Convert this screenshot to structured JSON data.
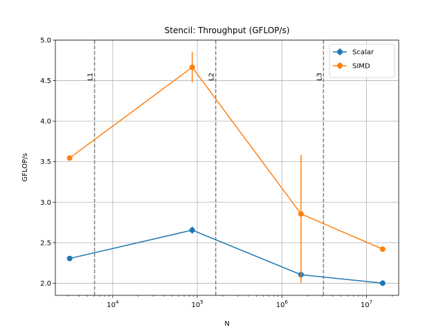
{
  "chart_data": {
    "type": "line",
    "title": "Stencil: Throughput (GFLOP/s)",
    "xlabel": "N",
    "ylabel": "GFLOP/s",
    "xscale": "log",
    "xlim": [
      2100,
      24000000
    ],
    "ylim": [
      1.85,
      5.0
    ],
    "yticks": [
      2.0,
      2.5,
      3.0,
      3.5,
      4.0,
      4.5,
      5.0
    ],
    "ytick_labels": [
      "2.0",
      "2.5",
      "3.0",
      "3.5",
      "4.0",
      "4.5",
      "5.0"
    ],
    "xticks": [
      10000,
      100000,
      1000000,
      10000000
    ],
    "xtick_labels": [
      {
        "base": "10",
        "exp": "4"
      },
      {
        "base": "10",
        "exp": "5"
      },
      {
        "base": "10",
        "exp": "6"
      },
      {
        "base": "10",
        "exp": "7"
      }
    ],
    "grid": true,
    "legend_position": "top-right",
    "x": [
      3100,
      87000,
      1680000,
      15500000
    ],
    "series": [
      {
        "name": "Scalar",
        "color": "#1f77b4",
        "values": [
          2.305,
          2.655,
          2.105,
          2.0
        ],
        "err_low": [
          0.0,
          0.045,
          0.05,
          0.0
        ],
        "err_high": [
          0.0,
          0.045,
          0.05,
          0.0
        ]
      },
      {
        "name": "SIMD",
        "color": "#ff7f0e",
        "values": [
          3.545,
          4.665,
          2.855,
          2.42
        ],
        "err_low": [
          0.0,
          0.19,
          0.85,
          0.0
        ],
        "err_high": [
          0.0,
          0.19,
          0.73,
          0.0
        ]
      }
    ],
    "vertical_markers": [
      {
        "label": "L1",
        "x": 6100
      },
      {
        "label": "L2",
        "x": 165000
      },
      {
        "label": "L3",
        "x": 3100000
      }
    ]
  }
}
